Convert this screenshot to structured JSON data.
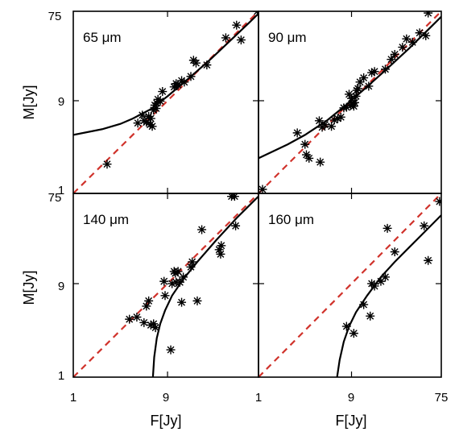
{
  "chart_data": {
    "type": "scatter",
    "xlabel": "F[Jy]",
    "ylabel": "M[Jy]",
    "scale": "log",
    "xlim": [
      1,
      75
    ],
    "ylim": [
      1,
      75
    ],
    "ticks": [
      "1",
      "9",
      "75"
    ],
    "panels": [
      {
        "title": "65 μm",
        "points": [
          [
            2.2,
            2.0
          ],
          [
            4.5,
            5.3
          ],
          [
            5.0,
            6.4
          ],
          [
            5.2,
            5.6
          ],
          [
            5.5,
            5.4
          ],
          [
            5.8,
            6.2
          ],
          [
            6.0,
            5.1
          ],
          [
            6.3,
            4.9
          ],
          [
            6.1,
            5.9
          ],
          [
            6.5,
            7.2
          ],
          [
            6.7,
            8.1
          ],
          [
            6.9,
            7.5
          ],
          [
            7.0,
            8.5
          ],
          [
            7.2,
            9.3
          ],
          [
            7.6,
            8.9
          ],
          [
            8.0,
            11.2
          ],
          [
            10.5,
            12.5
          ],
          [
            11.0,
            13.5
          ],
          [
            11.5,
            13.1
          ],
          [
            12.5,
            14.5
          ],
          [
            13.3,
            14.0
          ],
          [
            15.5,
            16.0
          ],
          [
            16.5,
            23.5
          ],
          [
            17.5,
            22.0
          ],
          [
            22.5,
            21.0
          ],
          [
            35.0,
            40.0
          ],
          [
            45.0,
            54.0
          ],
          [
            50.0,
            38.0
          ],
          [
            73.0,
            75.0
          ]
        ],
        "model": [
          [
            1,
            4.0
          ],
          [
            2,
            4.6
          ],
          [
            3,
            5.2
          ],
          [
            4,
            5.9
          ],
          [
            6,
            7.3
          ],
          [
            9,
            10.0
          ],
          [
            15,
            15.5
          ],
          [
            25,
            24.5
          ],
          [
            40,
            38.5
          ],
          [
            60,
            57.0
          ],
          [
            75,
            71.0
          ]
        ]
      },
      {
        "title": "90 μm",
        "points": [
          [
            1.1,
            1.1
          ],
          [
            2.5,
            4.2
          ],
          [
            3.0,
            3.2
          ],
          [
            3.1,
            2.5
          ],
          [
            3.3,
            2.3
          ],
          [
            4.3,
            2.1
          ],
          [
            4.2,
            5.6
          ],
          [
            4.5,
            4.8
          ],
          [
            4.8,
            5.1
          ],
          [
            5.6,
            4.9
          ],
          [
            6.0,
            5.7
          ],
          [
            6.5,
            5.9
          ],
          [
            7.0,
            6.1
          ],
          [
            7.5,
            7.6
          ],
          [
            8.0,
            7.7
          ],
          [
            8.5,
            10.5
          ],
          [
            8.8,
            8.0
          ],
          [
            9.0,
            9.5
          ],
          [
            9.3,
            8.5
          ],
          [
            9.5,
            7.9
          ],
          [
            9.7,
            8.6
          ],
          [
            10.0,
            10.0
          ],
          [
            10.2,
            11.5
          ],
          [
            10.5,
            12.0
          ],
          [
            11.0,
            14.0
          ],
          [
            12.0,
            15.5
          ],
          [
            13.5,
            12.7
          ],
          [
            14.5,
            17.5
          ],
          [
            15.5,
            18.0
          ],
          [
            20.0,
            19.0
          ],
          [
            23.0,
            24.0
          ],
          [
            25.0,
            27.0
          ],
          [
            30.0,
            32.0
          ],
          [
            33.0,
            39.0
          ],
          [
            38.0,
            36.0
          ],
          [
            45.0,
            45.0
          ],
          [
            52.0,
            42.0
          ],
          [
            55.0,
            72.0
          ]
        ],
        "model": [
          [
            1,
            2.3
          ],
          [
            2,
            3.2
          ],
          [
            3,
            4.0
          ],
          [
            5,
            5.6
          ],
          [
            8,
            8.2
          ],
          [
            12,
            11.7
          ],
          [
            20,
            18.5
          ],
          [
            35,
            31.0
          ],
          [
            55,
            48.5
          ],
          [
            75,
            66.0
          ]
        ]
      },
      {
        "title": "140 μm",
        "points": [
          [
            3.7,
            3.9
          ],
          [
            4.4,
            4.1
          ],
          [
            5.2,
            3.6
          ],
          [
            5.5,
            5.3
          ],
          [
            5.8,
            6.0
          ],
          [
            6.1,
            3.4
          ],
          [
            6.5,
            3.5
          ],
          [
            6.8,
            3.2
          ],
          [
            8.3,
            9.5
          ],
          [
            8.5,
            6.8
          ],
          [
            9.7,
            1.9
          ],
          [
            10.0,
            9.0
          ],
          [
            10.5,
            12.0
          ],
          [
            10.8,
            11.5
          ],
          [
            11.0,
            9.3
          ],
          [
            11.5,
            12.0
          ],
          [
            12.0,
            9.3
          ],
          [
            12.5,
            5.8
          ],
          [
            13.0,
            10.5
          ],
          [
            15.5,
            13.3
          ],
          [
            16.0,
            15.0
          ],
          [
            18.0,
            6.0
          ],
          [
            20.0,
            32.0
          ],
          [
            30.0,
            20.0
          ],
          [
            31.0,
            18.0
          ],
          [
            31.5,
            22.0
          ],
          [
            40.0,
            70.0
          ],
          [
            43.0,
            70.0
          ],
          [
            44.0,
            35.0
          ]
        ],
        "model": [
          [
            6.4,
            1.0
          ],
          [
            6.6,
            1.6
          ],
          [
            7.0,
            2.5
          ],
          [
            7.6,
            3.5
          ],
          [
            8.5,
            4.8
          ],
          [
            10.0,
            6.8
          ],
          [
            13.0,
            10.0
          ],
          [
            18.0,
            15.0
          ],
          [
            28.0,
            25.0
          ],
          [
            45.0,
            42.0
          ],
          [
            75.0,
            70.0
          ]
        ]
      },
      {
        "title": "160 μm",
        "points": [
          [
            8.0,
            3.3
          ],
          [
            9.5,
            2.8
          ],
          [
            12.0,
            5.5
          ],
          [
            14.0,
            4.2
          ],
          [
            14.5,
            9.0
          ],
          [
            15.5,
            8.5
          ],
          [
            18.0,
            9.5
          ],
          [
            20.0,
            10.5
          ],
          [
            21.0,
            33.0
          ],
          [
            25.0,
            19.0
          ],
          [
            50.0,
            35.0
          ],
          [
            55.0,
            15.5
          ],
          [
            72.0,
            62.0
          ]
        ],
        "model": [
          [
            6.4,
            1.0
          ],
          [
            6.8,
            1.5
          ],
          [
            7.5,
            2.3
          ],
          [
            8.5,
            3.3
          ],
          [
            10,
            4.6
          ],
          [
            13,
            6.8
          ],
          [
            18,
            10.5
          ],
          [
            25,
            15.0
          ],
          [
            35,
            21.0
          ],
          [
            50,
            30.0
          ],
          [
            75,
            45.0
          ]
        ]
      }
    ]
  }
}
